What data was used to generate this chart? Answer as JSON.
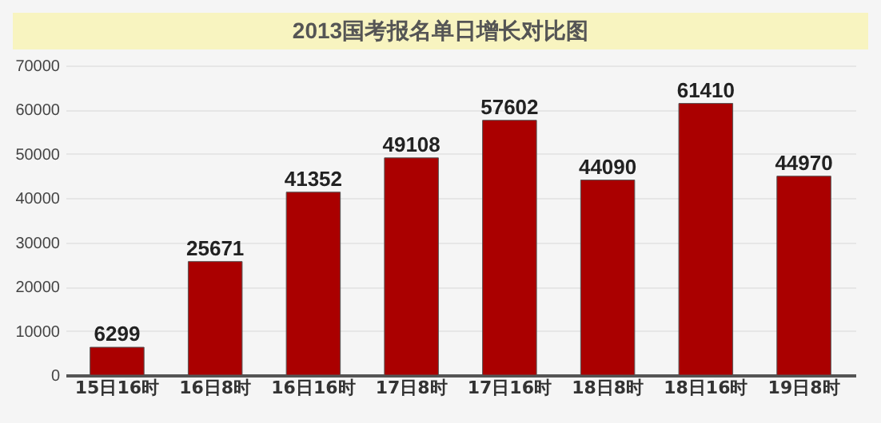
{
  "chart_data": {
    "type": "bar",
    "title": "2013国考报名单日增长对比图",
    "categories": [
      "15日16时",
      "16日8时",
      "16日16时",
      "17日8时",
      "17日16时",
      "18日8时",
      "18日16时",
      "19日8时"
    ],
    "values": [
      6299,
      25671,
      41352,
      49108,
      57602,
      44090,
      61410,
      44970
    ],
    "color": "#aa0000",
    "ylim": [
      0,
      70000
    ],
    "yticks": [
      0,
      10000,
      20000,
      30000,
      40000,
      50000,
      60000,
      70000
    ],
    "grid": "y",
    "data_labels": true
  }
}
